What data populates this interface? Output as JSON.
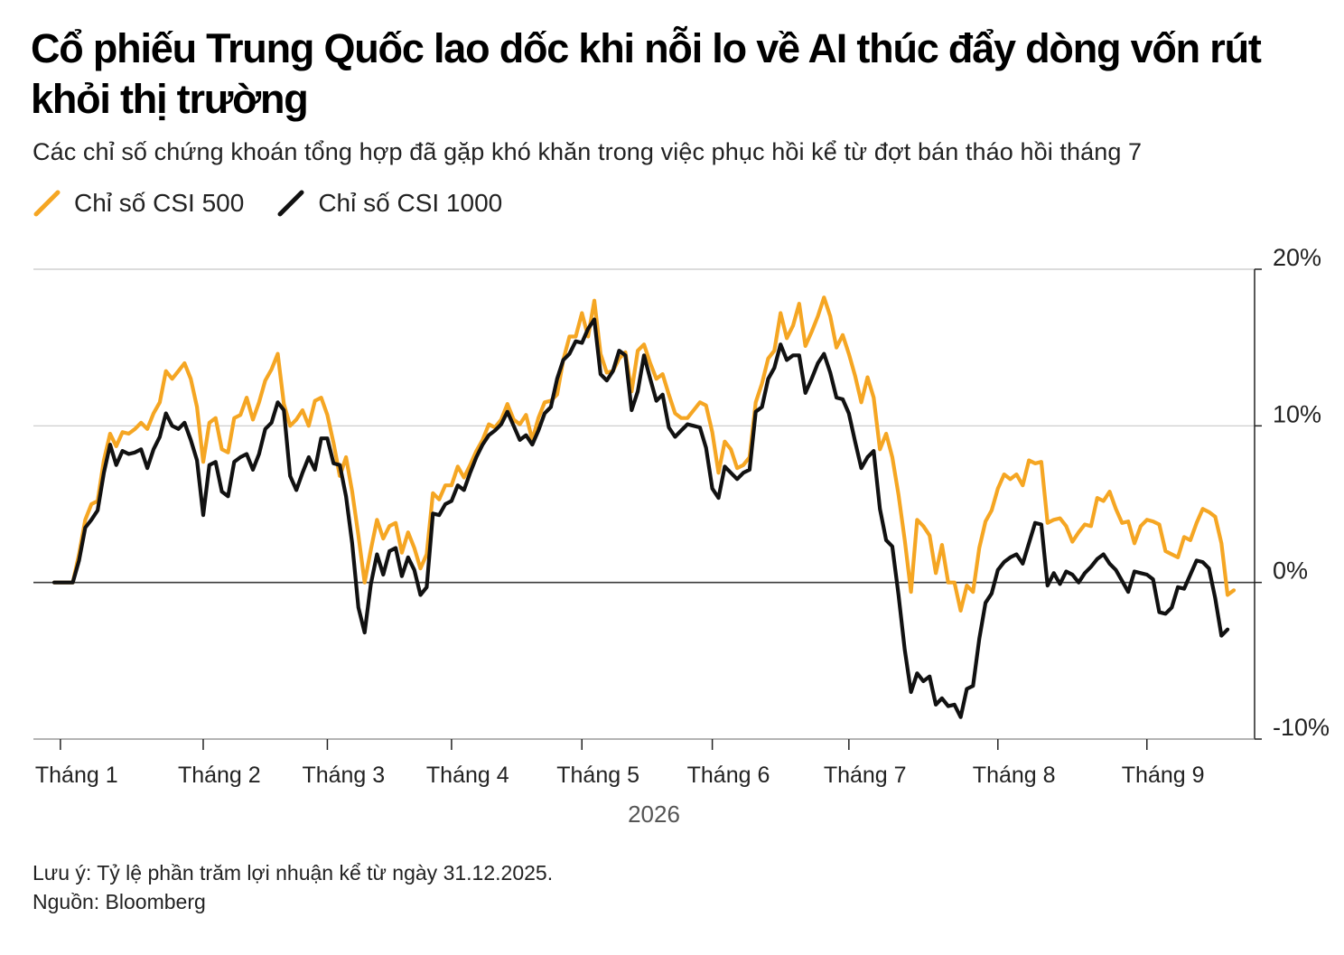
{
  "title": "Cổ phiếu Trung Quốc lao dốc khi nỗi lo về AI thúc đẩy dòng vốn rút khỏi thị trường",
  "subtitle": "Các chỉ số chứng khoán tổng hợp đã gặp khó khăn trong việc phục hồi kể từ đợt bán tháo hồi tháng 7",
  "note": "Lưu ý: Tỷ lệ phần trăm lợi nhuận kể từ ngày 31.12.2025.",
  "source": "Nguồn: Bloomberg",
  "colors": {
    "csi500": "#f5a623",
    "csi1000": "#111111",
    "grid": "#c8c8c8",
    "axis": "#222222"
  },
  "chart_data": {
    "type": "line",
    "xlabel": "2026",
    "ylabel": "",
    "ylim": [
      -10,
      20
    ],
    "y_ticks": [
      {
        "value": 20,
        "label": "20%"
      },
      {
        "value": 10,
        "label": "10%"
      },
      {
        "value": 0,
        "label": "0%"
      },
      {
        "value": -10,
        "label": "-10%"
      }
    ],
    "x_ticks": [
      "Tháng 1",
      "Tháng 2",
      "Tháng 3",
      "Tháng 4",
      "Tháng 5",
      "Tháng 6",
      "Tháng 7",
      "Tháng 8",
      "Tháng 9"
    ],
    "x_tick_index": [
      1,
      24,
      44,
      64,
      85,
      106,
      128,
      152,
      176
    ],
    "legend_position": "top-left",
    "grid": true,
    "series": [
      {
        "name": "Chỉ số CSI 500",
        "color": "#f5a623",
        "values": [
          0,
          0,
          0,
          0,
          1.8,
          4.0,
          5.0,
          5.2,
          7.8,
          9.5,
          8.7,
          9.6,
          9.5,
          9.8,
          10.2,
          9.8,
          10.8,
          11.5,
          13.5,
          13.0,
          13.5,
          14.0,
          13.0,
          11.2,
          7.7,
          10.2,
          10.5,
          8.5,
          8.3,
          10.5,
          10.7,
          11.8,
          10.4,
          11.5,
          12.9,
          13.6,
          14.6,
          11.4,
          10.0,
          10.4,
          11.0,
          10.0,
          11.6,
          11.8,
          10.7,
          8.9,
          6.8,
          8.0,
          5.8,
          3.0,
          0,
          2.1,
          4.0,
          2.8,
          3.6,
          3.8,
          1.9,
          3.2,
          2.2,
          0.9,
          1.8,
          5.7,
          5.3,
          6.2,
          6.2,
          7.4,
          6.7,
          7.5,
          8.4,
          9.1,
          10.1,
          9.9,
          10.4,
          11.4,
          10.4,
          10.1,
          10.7,
          9.1,
          10.5,
          11.5,
          11.6,
          12.0,
          14.2,
          15.7,
          15.7,
          17.2,
          15.7,
          18.0,
          14.6,
          13.4,
          13.5,
          14.3,
          14.7,
          12.2,
          14.8,
          15.2,
          14.0,
          13.0,
          13.3,
          12.0,
          10.8,
          10.5,
          10.5,
          11.0,
          11.5,
          11.3,
          9.6,
          7.0,
          9.0,
          8.5,
          7.3,
          7.5,
          8.0,
          11.5,
          12.7,
          14.3,
          14.8,
          17.2,
          15.6,
          16.4,
          17.8,
          15.1,
          16.0,
          17.0,
          18.2,
          17.0,
          15.0,
          15.8,
          14.6,
          13.2,
          11.5,
          13.1,
          11.8,
          8.5,
          9.5,
          8.0,
          5.6,
          2.7,
          -0.6,
          4.0,
          3.6,
          3.0,
          0.6,
          2.4,
          0,
          0,
          -1.8,
          -0.2,
          -0.6,
          2.2,
          3.9,
          4.6,
          6.0,
          6.9,
          6.6,
          6.9,
          6.2,
          7.8,
          7.6,
          7.7,
          3.8,
          4.0,
          4.1,
          3.6,
          2.6,
          3.2,
          3.7,
          3.6,
          5.4,
          5.2,
          5.8,
          4.7,
          3.8,
          3.9,
          2.5,
          3.6,
          4.0,
          3.9,
          3.7,
          2.0,
          1.8,
          1.6,
          2.9,
          2.7,
          3.8,
          4.7,
          4.5,
          4.2,
          2.5,
          -0.8,
          -0.5
        ]
      },
      {
        "name": "Chỉ số CSI 1000",
        "color": "#111111",
        "values": [
          0,
          0,
          0,
          0,
          1.4,
          3.5,
          4.0,
          4.6,
          7.0,
          8.8,
          7.5,
          8.4,
          8.2,
          8.3,
          8.5,
          7.3,
          8.5,
          9.3,
          10.8,
          10.0,
          9.8,
          10.2,
          9.1,
          7.8,
          4.3,
          7.5,
          7.7,
          5.8,
          5.5,
          7.7,
          8.0,
          8.2,
          7.2,
          8.2,
          9.8,
          10.2,
          11.5,
          11.0,
          6.8,
          5.9,
          7.0,
          8.0,
          7.2,
          9.2,
          9.2,
          7.6,
          7.5,
          5.5,
          2.5,
          -1.6,
          -3.2,
          -0.1,
          1.8,
          0.5,
          2.0,
          2.2,
          0.4,
          1.6,
          0.8,
          -0.8,
          -0.3,
          4.4,
          4.3,
          5.0,
          5.2,
          6.2,
          5.9,
          7.0,
          8.0,
          8.8,
          9.4,
          9.7,
          10.1,
          10.9,
          10.0,
          9.1,
          9.4,
          8.8,
          9.7,
          10.8,
          11.2,
          13.0,
          14.2,
          14.6,
          15.4,
          15.3,
          16.2,
          16.8,
          13.3,
          12.9,
          13.5,
          14.8,
          14.5,
          11.0,
          12.2,
          14.5,
          13.0,
          11.6,
          12.0,
          9.9,
          9.3,
          9.7,
          10.1,
          10.0,
          9.9,
          8.6,
          6.0,
          5.4,
          7.4,
          7.0,
          6.6,
          7.0,
          7.2,
          10.9,
          11.2,
          13.0,
          13.7,
          15.2,
          14.2,
          14.5,
          14.5,
          12.1,
          13.0,
          14.0,
          14.6,
          13.4,
          11.8,
          11.7,
          10.8,
          9.0,
          7.3,
          8.0,
          8.4,
          4.7,
          2.7,
          2.3,
          -0.8,
          -4.3,
          -7.0,
          -5.8,
          -6.3,
          -6.0,
          -7.8,
          -7.4,
          -7.9,
          -7.8,
          -8.6,
          -6.8,
          -6.6,
          -3.6,
          -1.3,
          -0.7,
          0.8,
          1.3,
          1.6,
          1.8,
          1.2,
          2.5,
          3.8,
          3.7,
          -0.2,
          0.6,
          -0.1,
          0.7,
          0.5,
          0,
          0.6,
          1.0,
          1.5,
          1.8,
          1.2,
          0.8,
          0.1,
          -0.6,
          0.7,
          0.6,
          0.5,
          0.2,
          -1.9,
          -2.0,
          -1.6,
          -0.3,
          -0.4,
          0.5,
          1.4,
          1.3,
          0.9,
          -1.0,
          -3.4,
          -3.0
        ]
      }
    ]
  }
}
